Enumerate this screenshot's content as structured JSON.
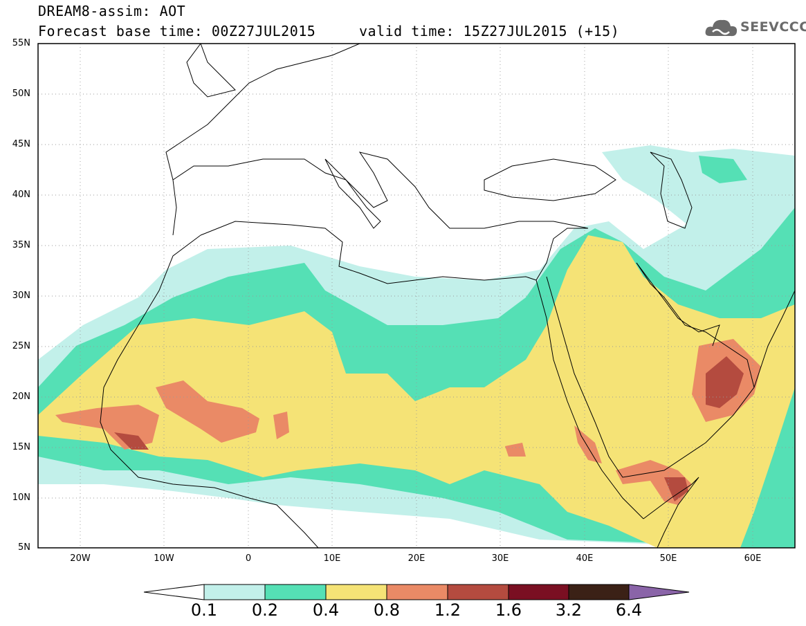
{
  "title": {
    "line1": "DREAM8-assim: AOT",
    "line2": "Forecast base time: 00Z27JUL2015     valid time: 15Z27JUL2015 (+15)"
  },
  "logo": {
    "text": "SEEVCCC",
    "icon": "cloud-logo-icon"
  },
  "map": {
    "lon_range": [
      -25,
      65
    ],
    "lat_range": [
      5,
      55
    ],
    "lat_labels": [
      "55N",
      "50N",
      "45N",
      "40N",
      "35N",
      "30N",
      "25N",
      "20N",
      "15N",
      "10N",
      "5N"
    ],
    "lon_labels": [
      "20W",
      "10W",
      "0",
      "10E",
      "20E",
      "30E",
      "40E",
      "50E",
      "60E"
    ],
    "grid": "dotted"
  },
  "colorbar": {
    "labels": [
      "0.1",
      "0.2",
      "0.4",
      "0.8",
      "1.2",
      "1.6",
      "3.2",
      "6.4"
    ],
    "colors": [
      "#ffffff",
      "#c2f0ea",
      "#55e0b5",
      "#f5e376",
      "#ea8a66",
      "#b44b3f",
      "#7a0f22",
      "#3b2116",
      "#8a64a8"
    ]
  }
}
